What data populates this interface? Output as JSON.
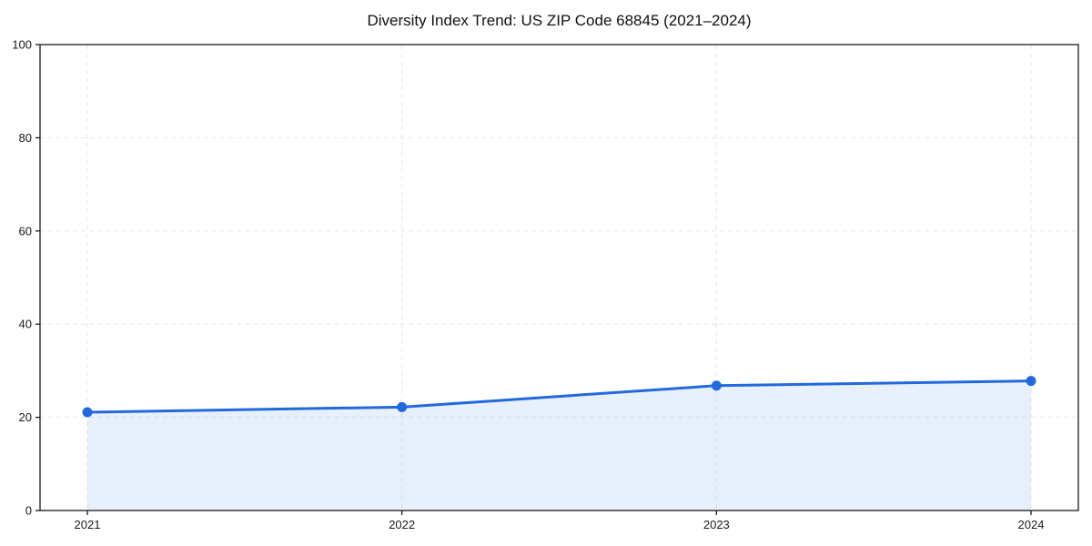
{
  "chart_data": {
    "type": "line",
    "title": "Diversity Index Trend: US ZIP Code 68845 (2021–2024)",
    "x": [
      2021,
      2022,
      2023,
      2024
    ],
    "x_tick_labels": [
      "2021",
      "2022",
      "2023",
      "2024"
    ],
    "series": [
      {
        "name": "Diversity Index",
        "values": [
          21.1,
          22.2,
          26.8,
          27.8
        ],
        "color": "#2269dd",
        "marker": "circle",
        "area_fill": true
      }
    ],
    "xlabel": "",
    "ylabel": "",
    "ylim": [
      0,
      100
    ],
    "y_ticks": [
      0,
      20,
      40,
      60,
      80,
      100
    ],
    "grid": "dashed-both-axes",
    "grid_color": "#e7e7e7",
    "axis_color": "#1a1a1a",
    "fill_color": "rgba(34, 105, 221, 0.10)",
    "legend": "none",
    "background": "#ffffff"
  }
}
